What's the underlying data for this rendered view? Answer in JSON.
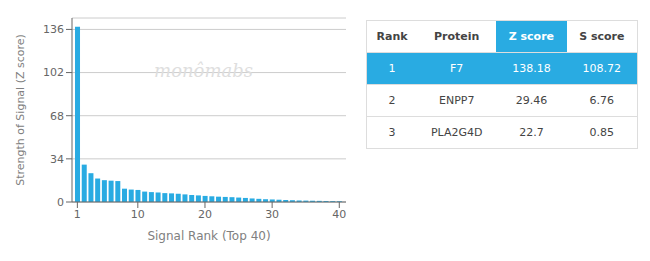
{
  "chart_data": {
    "type": "bar",
    "x": [
      1,
      2,
      3,
      4,
      5,
      6,
      7,
      8,
      9,
      10,
      11,
      12,
      13,
      14,
      15,
      16,
      17,
      18,
      19,
      20,
      21,
      22,
      23,
      24,
      25,
      26,
      27,
      28,
      29,
      30,
      31,
      32,
      33,
      34,
      35,
      36,
      37,
      38,
      39,
      40
    ],
    "values": [
      138.18,
      29.46,
      22.7,
      18.5,
      17.2,
      16.8,
      16.5,
      10.5,
      9.8,
      9.5,
      8.2,
      7.8,
      7.5,
      7.0,
      6.8,
      6.5,
      6.0,
      5.5,
      5.2,
      4.8,
      4.5,
      4.2,
      4.0,
      3.8,
      3.5,
      3.2,
      2.8,
      2.5,
      2.2,
      2.0,
      1.8,
      1.6,
      1.4,
      1.2,
      1.1,
      1.0,
      0.9,
      0.8,
      0.7,
      0.6
    ],
    "color": "#29ABE2",
    "xlabel": "Signal Rank (Top 40)",
    "ylabel": "Strength of Signal (Z score)",
    "xlim": [
      0.2,
      41
    ],
    "xticks": [
      1,
      10,
      20,
      30,
      40
    ],
    "ylim": [
      0,
      145
    ],
    "yticks": [
      0,
      34,
      68,
      102,
      136
    ],
    "grid": true,
    "annotations": [
      "monômabs"
    ],
    "table": [
      [
        "Rank",
        "Protein",
        "Z score",
        "S score"
      ],
      [
        "1",
        "F7",
        "138.18",
        "108.72"
      ],
      [
        "2",
        "ENPP7",
        "29.46",
        "6.76"
      ],
      [
        "3",
        "PLA2G4D",
        "22.7",
        "0.85"
      ]
    ]
  }
}
